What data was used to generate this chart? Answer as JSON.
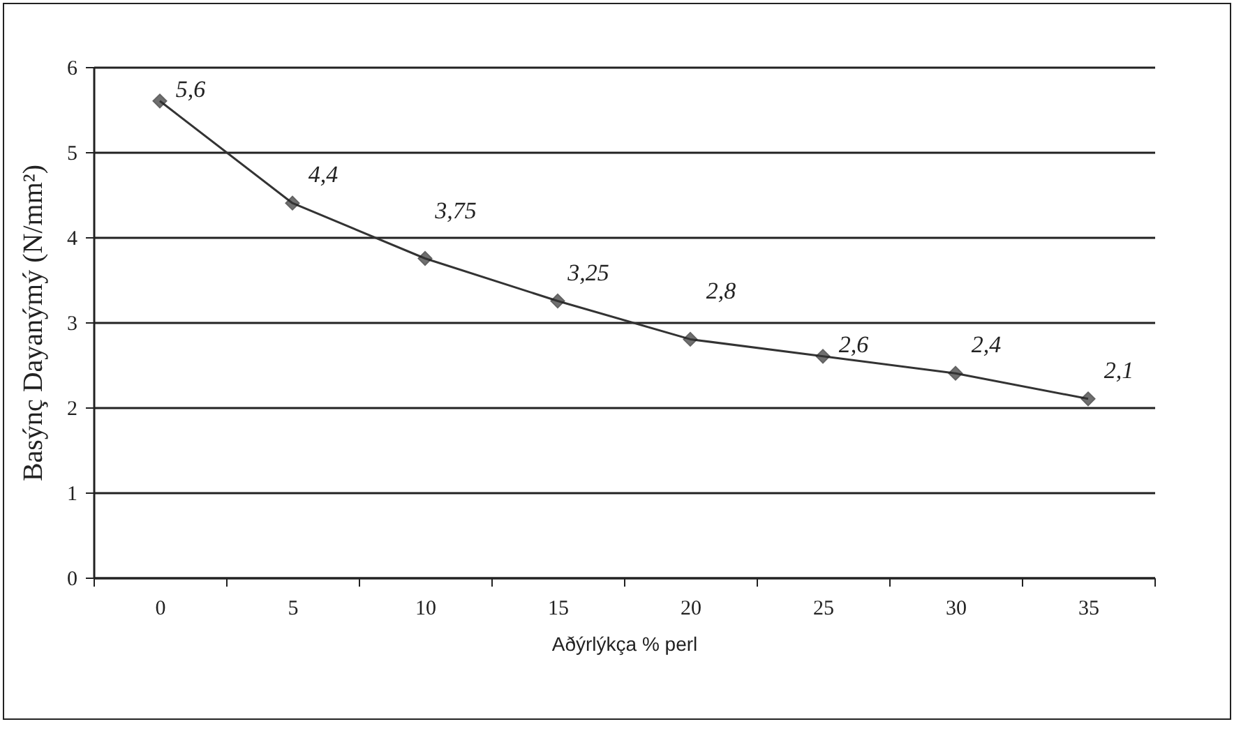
{
  "chart_data": {
    "type": "line",
    "xlabel": "Aðýrlýkça % perl",
    "ylabel": "Basýnç Dayanýmý (N/mm²)",
    "categories": [
      "0",
      "5",
      "10",
      "15",
      "20",
      "25",
      "30",
      "35"
    ],
    "series": [
      {
        "color": "#333333",
        "values": [
          5.6,
          4.4,
          3.75,
          3.25,
          2.8,
          2.6,
          2.4,
          2.1
        ],
        "value_labels": [
          "5,6",
          "4,4",
          "3,75",
          "3,25",
          "2,8",
          "2,6",
          "2,4",
          "2,1"
        ]
      }
    ],
    "ylim": [
      0,
      6
    ],
    "yticks": [
      0,
      1,
      2,
      3,
      4,
      5,
      6
    ],
    "grid": "y",
    "marker": "diamond",
    "line_style": "solid"
  }
}
